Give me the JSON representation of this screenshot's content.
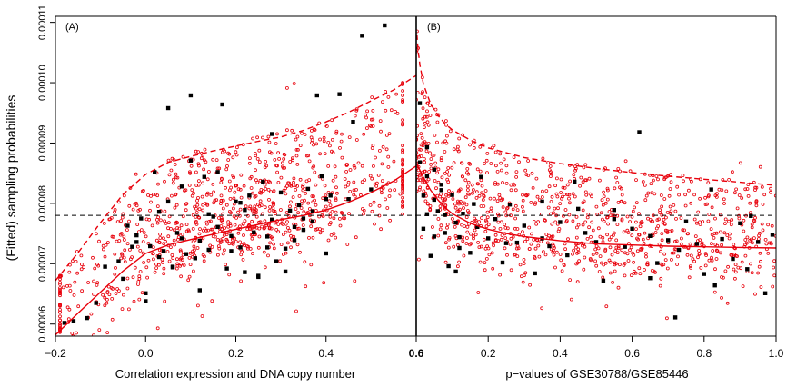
{
  "figure": {
    "ylabel": "(Fitted) sampling probabilities",
    "colors": {
      "points_red": "#e8000b",
      "points_black": "#000000",
      "curves": "#e8000b",
      "reference": "#000000"
    }
  },
  "chart_data": [
    {
      "type": "scatter",
      "panel_label": "(A)",
      "xlabel": "Correlation expression and DNA copy number",
      "ylabel": "(Fitted) sampling probabilities",
      "xlim": [
        -0.2,
        0.6
      ],
      "ylim": [
        5.8e-05,
        0.000111
      ],
      "xticks": [
        -0.2,
        0.0,
        0.2,
        0.4,
        0.6
      ],
      "xtick_labels": [
        "−0.2",
        "0.0",
        "0.2",
        "0.4",
        "0.6"
      ],
      "yticks": [
        6e-05,
        7e-05,
        8e-05,
        9e-05,
        0.0001,
        0.00011
      ],
      "ytick_labels": [
        "0.00006",
        "0.00007",
        "0.00008",
        "0.00009",
        "0.00010",
        "0.00011"
      ],
      "reference_line_y": 7.8e-05,
      "solid_curve": {
        "x": [
          -0.2,
          -0.15,
          -0.1,
          -0.05,
          0.0,
          0.05,
          0.1,
          0.15,
          0.2,
          0.25,
          0.3,
          0.35,
          0.4,
          0.45,
          0.5,
          0.55,
          0.6
        ],
        "y": [
          5.82e-05,
          6.18e-05,
          6.53e-05,
          6.88e-05,
          7.17e-05,
          7.31e-05,
          7.4e-05,
          7.49e-05,
          7.57e-05,
          7.65e-05,
          7.73e-05,
          7.8e-05,
          7.89e-05,
          8.02e-05,
          8.18e-05,
          8.37e-05,
          8.62e-05
        ]
      },
      "dashed_curve": {
        "x": [
          -0.2,
          -0.15,
          -0.1,
          -0.05,
          0.0,
          0.05,
          0.1,
          0.15,
          0.2,
          0.25,
          0.3,
          0.35,
          0.4,
          0.45,
          0.5,
          0.55,
          0.6
        ],
        "y": [
          6.72e-05,
          7.18e-05,
          7.68e-05,
          8.15e-05,
          8.48e-05,
          8.68e-05,
          8.78e-05,
          8.87e-05,
          8.95e-05,
          9.03e-05,
          9.1e-05,
          9.21e-05,
          9.35e-05,
          9.51e-05,
          9.7e-05,
          9.88e-05,
          0.0001012
        ]
      },
      "black_points": {
        "x": [
          -0.18,
          -0.16,
          -0.13,
          -0.11,
          -0.09,
          -0.06,
          -0.05,
          -0.04,
          -0.03,
          -0.02,
          -0.01,
          0.0,
          0.0,
          0.01,
          0.02,
          0.03,
          0.04,
          0.05,
          0.05,
          0.06,
          0.07,
          0.08,
          0.09,
          0.1,
          0.1,
          0.11,
          0.12,
          0.13,
          0.14,
          0.15,
          0.16,
          0.17,
          0.18,
          0.19,
          0.2,
          0.21,
          0.22,
          0.23,
          0.24,
          0.25,
          0.26,
          0.27,
          0.28,
          0.29,
          0.3,
          0.31,
          0.32,
          0.33,
          0.34,
          0.35,
          0.36,
          0.37,
          0.38,
          0.39,
          0.4,
          0.41,
          0.43,
          0.45,
          0.48,
          0.5,
          0.53,
          0.12,
          0.16,
          0.22,
          0.25,
          0.28,
          0.33,
          0.37,
          0.4,
          -0.02,
          0.08,
          0.14,
          0.19,
          0.27,
          0.31,
          0.35,
          0.46,
          0.21,
          0.06,
          0.03
        ],
        "y": [
          6.02e-05,
          6.05e-05,
          6.1e-05,
          6.35e-05,
          6.95e-05,
          7.04e-05,
          6.75e-05,
          7.63e-05,
          7.28e-05,
          7.47e-05,
          7.75e-05,
          6.38e-05,
          6.51e-05,
          7.29e-05,
          8.52e-05,
          7.86e-05,
          7.21e-05,
          9.58e-05,
          8.03e-05,
          6.95e-05,
          7.51e-05,
          8.28e-05,
          7.16e-05,
          9.79e-05,
          8.71e-05,
          7.09e-05,
          7.38e-05,
          8.44e-05,
          7.82e-05,
          7.78e-05,
          7.61e-05,
          9.64e-05,
          6.92e-05,
          7.46e-05,
          8.03e-05,
          7.27e-05,
          7.89e-05,
          8.13e-05,
          7.52e-05,
          6.78e-05,
          8.36e-05,
          7.45e-05,
          7.73e-05,
          7.04e-05,
          8.18e-05,
          7.25e-05,
          7.88e-05,
          7.39e-05,
          7.97e-05,
          7.56e-05,
          8.24e-05,
          7.7e-05,
          9.79e-05,
          8.45e-05,
          8.07e-05,
          8.13e-05,
          9.81e-05,
          8.07e-05,
          0.0001078,
          8.23e-05,
          0.0001095,
          6.56e-05,
          8.52e-05,
          6.86e-05,
          6.8e-05,
          9.15e-05,
          7.61e-05,
          7.87e-05,
          7.17e-05,
          7.36e-05,
          7.42e-05,
          7.23e-05,
          7.21e-05,
          7.27e-05,
          6.87e-05,
          7.75e-05,
          9.35e-05,
          8.01e-05,
          6.94e-05,
          7.11e-05
        ]
      }
    },
    {
      "type": "scatter",
      "panel_label": "(B)",
      "xlabel": "p−values of GSE30788/GSE85446",
      "xlim": [
        0.0,
        1.0
      ],
      "ylim": [
        5.8e-05,
        0.000111
      ],
      "xticks": [
        0.2,
        0.4,
        0.6,
        0.8,
        1.0
      ],
      "xtick_labels": [
        "0.2",
        "0.4",
        "0.6",
        "0.8",
        "1.0"
      ],
      "reference_line_y": 7.8e-05,
      "solid_curve": {
        "x": [
          0.002,
          0.01,
          0.02,
          0.04,
          0.06,
          0.08,
          0.1,
          0.15,
          0.2,
          0.25,
          0.3,
          0.4,
          0.5,
          0.6,
          0.7,
          0.8,
          0.9,
          1.0
        ],
        "y": [
          8.65e-05,
          8.55e-05,
          8.43e-05,
          8.22e-05,
          8.06e-05,
          7.93e-05,
          7.83e-05,
          7.67e-05,
          7.57e-05,
          7.5e-05,
          7.45e-05,
          7.38e-05,
          7.33e-05,
          7.31e-05,
          7.29e-05,
          7.28e-05,
          7.27e-05,
          7.26e-05
        ]
      },
      "dashed_curve": {
        "x": [
          0.002,
          0.005,
          0.01,
          0.02,
          0.04,
          0.06,
          0.08,
          0.1,
          0.15,
          0.2,
          0.3,
          0.4,
          0.5,
          0.6,
          0.7,
          0.8,
          0.9,
          1.0
        ],
        "y": [
          0.000108,
          0.0001055,
          0.000103,
          9.98e-05,
          9.65e-05,
          9.46e-05,
          9.32e-05,
          9.22e-05,
          9.05e-05,
          8.92e-05,
          8.76e-05,
          8.66e-05,
          8.58e-05,
          8.51e-05,
          8.45e-05,
          8.4e-05,
          8.35e-05,
          8.3e-05
        ]
      },
      "black_points": {
        "x": [
          0.01,
          0.01,
          0.02,
          0.02,
          0.03,
          0.03,
          0.04,
          0.05,
          0.05,
          0.06,
          0.07,
          0.08,
          0.09,
          0.1,
          0.11,
          0.12,
          0.13,
          0.15,
          0.17,
          0.18,
          0.2,
          0.22,
          0.24,
          0.26,
          0.28,
          0.3,
          0.33,
          0.35,
          0.37,
          0.4,
          0.42,
          0.44,
          0.47,
          0.5,
          0.52,
          0.55,
          0.58,
          0.6,
          0.62,
          0.65,
          0.67,
          0.7,
          0.72,
          0.75,
          0.78,
          0.8,
          0.82,
          0.85,
          0.88,
          0.9,
          0.92,
          0.95,
          0.97,
          0.99,
          0.03,
          0.05,
          0.08,
          0.12,
          0.16,
          0.25,
          0.35,
          0.45,
          0.55,
          0.65,
          0.73,
          0.83,
          0.93,
          0.07,
          0.11
        ],
        "y": [
          9.66e-05,
          8.68e-05,
          8.13e-05,
          7.58e-05,
          8.45e-05,
          7.82e-05,
          7.13e-05,
          8.06e-05,
          7.45e-05,
          7.87e-05,
          8.31e-05,
          7.51e-05,
          6.96e-05,
          8.14e-05,
          7.68e-05,
          7.26e-05,
          7.83e-05,
          7.18e-05,
          7.61e-05,
          8.44e-05,
          7.42e-05,
          7.74e-05,
          7.02e-05,
          7.98e-05,
          7.35e-05,
          7.63e-05,
          6.84e-05,
          8.03e-05,
          7.29e-05,
          7.69e-05,
          7.14e-05,
          8.36e-05,
          7.51e-05,
          7.36e-05,
          6.72e-05,
          7.89e-05,
          7.28e-05,
          7.58e-05,
          9.18e-05,
          7.46e-05,
          7.01e-05,
          7.39e-05,
          6.11e-05,
          7.7e-05,
          7.33e-05,
          6.83e-05,
          8.23e-05,
          7.41e-05,
          7.08e-05,
          7.67e-05,
          6.91e-05,
          7.36e-05,
          6.51e-05,
          7.48e-05,
          8.93e-05,
          8.56e-05,
          7.81e-05,
          7.44e-05,
          7.99e-05,
          7.34e-05,
          7.42e-05,
          7.91e-05,
          7.74e-05,
          6.76e-05,
          7.23e-05,
          6.64e-05,
          7.79e-05,
          8.22e-05,
          6.87e-05
        ]
      }
    }
  ]
}
